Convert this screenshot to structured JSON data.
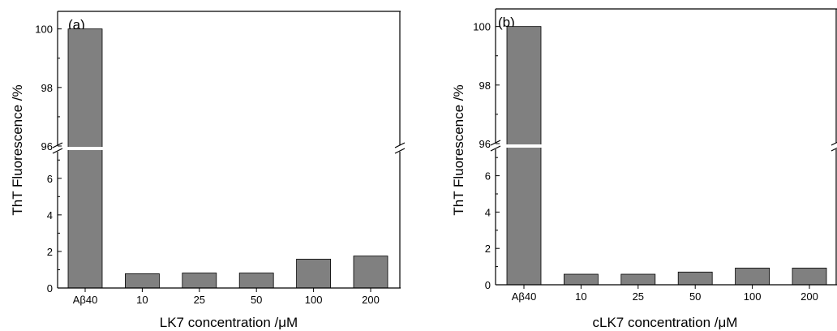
{
  "chart_data": [
    {
      "type": "bar",
      "panel_label": "(a)",
      "categories": [
        "Aβ40",
        "10",
        "25",
        "50",
        "100",
        "200"
      ],
      "values": [
        100,
        0.78,
        0.82,
        0.82,
        1.58,
        1.75
      ],
      "xlabel": "LK7 concentration /μM",
      "ylabel": "ThT Fluorescence /%",
      "y_broken_axis": true,
      "y_lower_range": [
        0,
        7.5
      ],
      "y_upper_range": [
        96,
        100.6
      ],
      "y_lower_ticks": [
        "0",
        "2",
        "4",
        "6"
      ],
      "y_upper_ticks": [
        "96",
        "98",
        "100"
      ],
      "bar_color": "#808080",
      "grid": false
    },
    {
      "type": "bar",
      "panel_label": "(b)",
      "categories": [
        "Aβ40",
        "10",
        "25",
        "50",
        "100",
        "200"
      ],
      "values": [
        100,
        0.58,
        0.58,
        0.7,
        0.92,
        0.92
      ],
      "xlabel": "cLK7 concentration /μM",
      "ylabel": "ThT Fluorescence /%",
      "y_broken_axis": true,
      "y_lower_range": [
        0,
        7.5
      ],
      "y_upper_range": [
        96,
        100.6
      ],
      "y_lower_ticks": [
        "0",
        "2",
        "4",
        "6"
      ],
      "y_upper_ticks": [
        "96",
        "98",
        "100"
      ],
      "bar_color": "#808080",
      "grid": false
    }
  ]
}
